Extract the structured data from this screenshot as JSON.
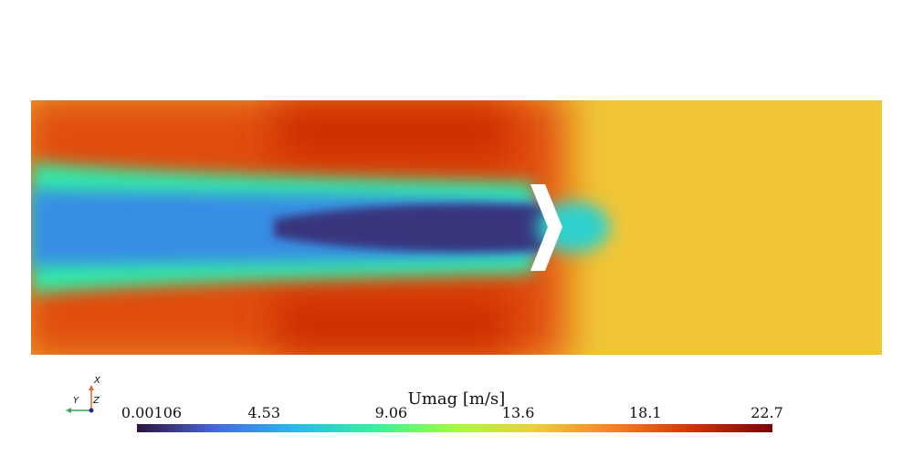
{
  "colorbar": {
    "title": "Umag [m/s]",
    "variable": "Umag",
    "unit": "m/s",
    "min": 0.00106,
    "max": 22.7,
    "tick_labels": [
      "0.00106",
      "4.53",
      "9.06",
      "13.6",
      "18.1",
      "22.7"
    ],
    "colormap": "turbo",
    "colormap_stops": [
      "#30123b",
      "#4669e0",
      "#28bbec",
      "#34f29f",
      "#a4fc3b",
      "#eecf3a",
      "#fb8022",
      "#d23105",
      "#7a0403"
    ]
  },
  "axes_triad": {
    "x_label": "X",
    "y_label": "Y",
    "z_label": "Z",
    "x_color": "#e2672b",
    "y_color": "#3aa657",
    "z_color": "#1f2d9c"
  },
  "field": {
    "freestream_level": 0.64,
    "wake_level": 0.05,
    "shear_peak_level": 0.88,
    "obstacle": "chevron",
    "obstacle_color": "#ffffff"
  }
}
